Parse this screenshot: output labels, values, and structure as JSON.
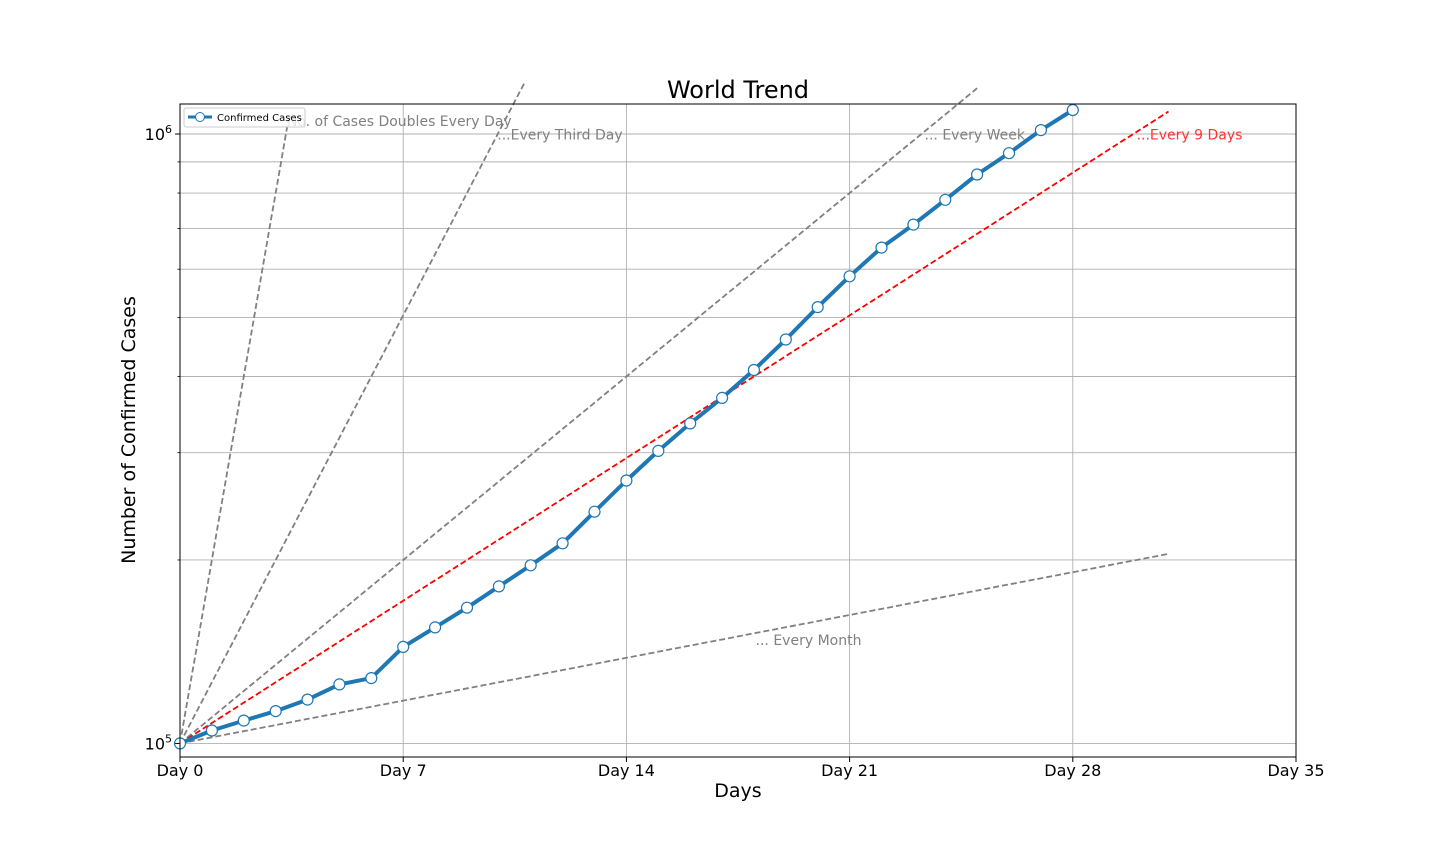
{
  "chart_data": {
    "type": "line",
    "title": "World Trend",
    "xlabel": "Days",
    "ylabel": "Number of Confirmed Cases",
    "xlim": [
      0,
      35
    ],
    "ylim": [
      95000,
      1120000
    ],
    "y_scale": "log",
    "grid": true,
    "legend_position": "top-left",
    "x_ticks": [
      {
        "value": 0,
        "label": "Day 0"
      },
      {
        "value": 7,
        "label": "Day 7"
      },
      {
        "value": 14,
        "label": "Day 14"
      },
      {
        "value": 21,
        "label": "Day 21"
      },
      {
        "value": 28,
        "label": "Day 28"
      },
      {
        "value": 35,
        "label": "Day 35"
      }
    ],
    "y_ticks": [
      {
        "value": 100000,
        "base": "10",
        "exp": "5"
      },
      {
        "value": 1000000,
        "base": "10",
        "exp": "6"
      }
    ],
    "y_minor_ticks": [
      200000,
      300000,
      400000,
      500000,
      600000,
      700000,
      800000,
      900000
    ],
    "series": [
      {
        "name": "Confirmed Cases",
        "color": "#1f77b4",
        "x": [
          0,
          1,
          2,
          3,
          4,
          5,
          6,
          7,
          8,
          9,
          10,
          11,
          12,
          13,
          14,
          15,
          16,
          17,
          18,
          19,
          20,
          21,
          22,
          23,
          24,
          25,
          26,
          27,
          28
        ],
        "values": [
          100000,
          105000,
          109000,
          113000,
          118000,
          125000,
          128000,
          144000,
          155000,
          167000,
          181000,
          196000,
          213000,
          240000,
          270000,
          302000,
          335000,
          369000,
          410000,
          460000,
          520000,
          584000,
          651000,
          710000,
          780000,
          858000,
          930000,
          1015000,
          1095000
        ]
      }
    ],
    "reference_lines": [
      {
        "doubling_days": 1,
        "x_end": 3.4,
        "color": "#808080",
        "label": "No. of Cases Doubles Every Day",
        "label_x": 3.35,
        "label_y": 1030000,
        "label_color": "#808080"
      },
      {
        "doubling_days": 3,
        "x_end": 10.8,
        "color": "#808080",
        "label": "...Every Third Day",
        "label_x": 9.95,
        "label_y": 980000,
        "label_color": "#808080"
      },
      {
        "doubling_days": 7,
        "x_end": 25,
        "color": "#808080",
        "label": "... Every Week",
        "label_x": 23.35,
        "label_y": 980000,
        "label_color": "#808080"
      },
      {
        "doubling_days": 9,
        "x_end": 31,
        "color": "#ff0000",
        "label": "...Every 9 Days",
        "label_x": 30.0,
        "label_y": 980000,
        "label_color": "#ff3333"
      },
      {
        "doubling_days": 30,
        "x_end": 31,
        "color": "#808080",
        "label": "... Every Month",
        "label_x": 18.05,
        "label_y": 145000,
        "label_color": "#808080"
      }
    ]
  }
}
